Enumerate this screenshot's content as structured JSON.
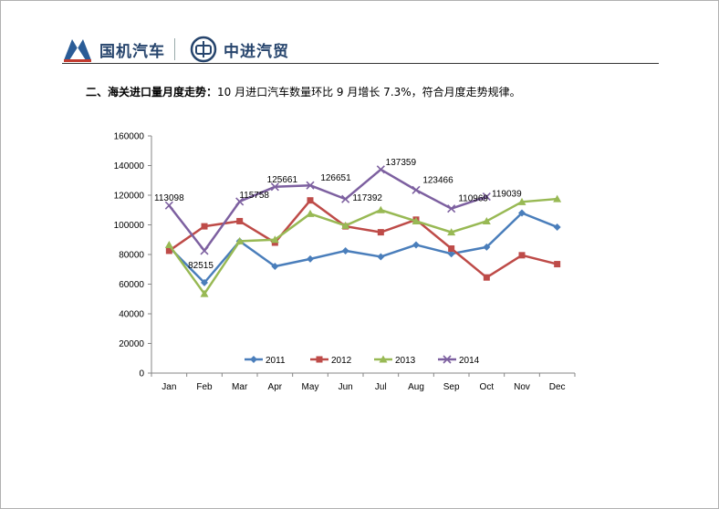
{
  "header": {
    "brand_left": "国机汽车",
    "brand_right": "中进汽贸"
  },
  "headline": {
    "bold_part": "二、海关进口量月度走势：",
    "rest": "10 月进口汽车数量环比 9 月增长 7.3%，符合月度走势规律。"
  },
  "colors": {
    "s2011": "#4a7ebb",
    "s2012": "#be4b48",
    "s2013": "#98b954",
    "s2014": "#7d60a0"
  },
  "chart_data": {
    "type": "line",
    "categories": [
      "Jan",
      "Feb",
      "Mar",
      "Apr",
      "May",
      "Jun",
      "Jul",
      "Aug",
      "Sep",
      "Oct",
      "Nov",
      "Dec"
    ],
    "ylim": [
      0,
      160000
    ],
    "yticks": [
      0,
      20000,
      40000,
      60000,
      80000,
      100000,
      120000,
      140000,
      160000
    ],
    "legend_position": "bottom-inside",
    "series": [
      {
        "name": "2011",
        "marker": "diamond",
        "values": [
          85000,
          61000,
          89000,
          72000,
          77000,
          82500,
          78500,
          86500,
          80500,
          85000,
          108000,
          98500
        ]
      },
      {
        "name": "2012",
        "marker": "square",
        "values": [
          82500,
          99000,
          102500,
          88000,
          116500,
          99000,
          95000,
          103500,
          84000,
          64500,
          79500,
          73500
        ]
      },
      {
        "name": "2013",
        "marker": "triangle",
        "values": [
          86500,
          53500,
          89000,
          90000,
          107500,
          99500,
          110000,
          102500,
          95000,
          102500,
          115500,
          117500
        ]
      },
      {
        "name": "2014",
        "marker": "x",
        "values": [
          113098,
          82515,
          115758,
          125661,
          126651,
          117392,
          137359,
          123466,
          110969,
          119039,
          null,
          null
        ]
      }
    ],
    "data_labels": [
      "113098",
      "82515",
      "115758",
      "125661",
      "126651",
      "117392",
      "137359",
      "123466",
      "110969",
      "119039"
    ]
  }
}
